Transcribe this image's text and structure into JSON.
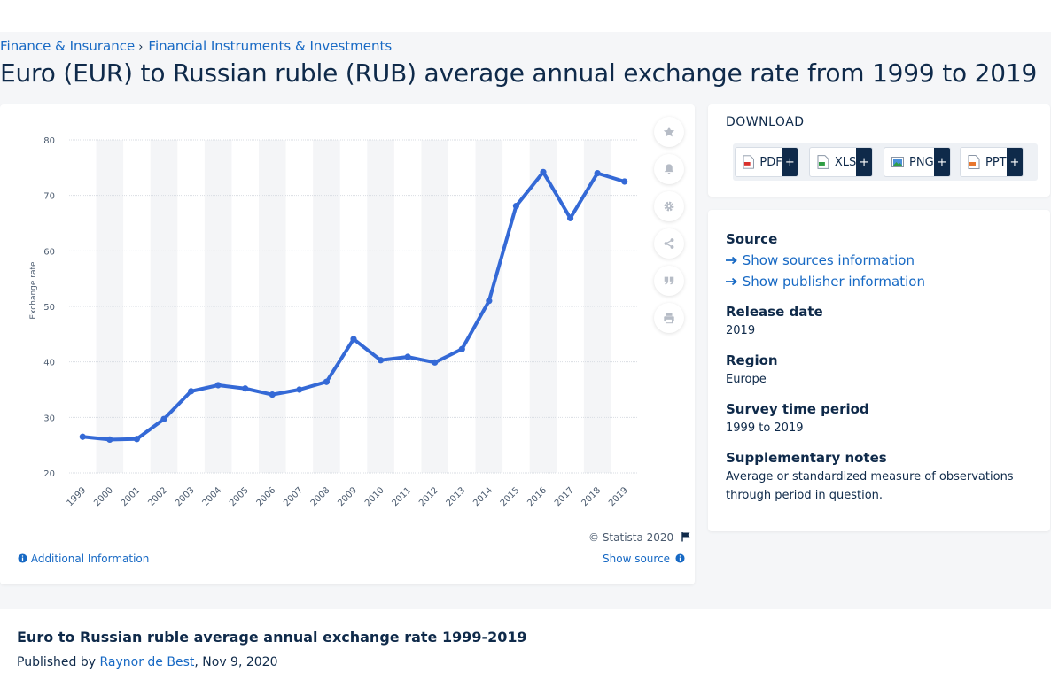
{
  "breadcrumb": {
    "items": [
      "Finance & Insurance",
      "Financial Instruments & Investments"
    ],
    "separator": "›"
  },
  "page": {
    "title": "Euro (EUR) to Russian ruble (RUB) average annual exchange rate from 1999 to 2019"
  },
  "chart_footer": {
    "copyright": "© Statista 2020",
    "additional_info": "Additional Information",
    "show_source": "Show source"
  },
  "download": {
    "title": "DOWNLOAD",
    "buttons": [
      {
        "label": "PDF",
        "plus": "+"
      },
      {
        "label": "XLS",
        "plus": "+"
      },
      {
        "label": "PNG",
        "plus": "+"
      },
      {
        "label": "PPT",
        "plus": "+"
      }
    ]
  },
  "info": {
    "source_label": "Source",
    "show_sources": "Show sources information",
    "show_publisher": "Show publisher information",
    "release_label": "Release date",
    "release_value": "2019",
    "region_label": "Region",
    "region_value": "Europe",
    "survey_label": "Survey time period",
    "survey_value": "1999 to 2019",
    "notes_label": "Supplementary notes",
    "notes_value": "Average or standardized measure of observations through period in question."
  },
  "bottom": {
    "title": "Euro to Russian ruble average annual exchange rate 1999-2019",
    "published_prefix": "Published by ",
    "author": "Raynor de Best",
    "date": ", Nov 9, 2020"
  },
  "colors": {
    "line": "#3469d6",
    "accent": "#1769c4",
    "navy": "#0f2a4a"
  },
  "icons": [
    "star-icon",
    "bell-icon",
    "gear-icon",
    "share-icon",
    "quote-icon",
    "print-icon",
    "flag-icon",
    "info-icon",
    "arrow-right-icon"
  ],
  "chart_data": {
    "type": "line",
    "categories": [
      "1999",
      "2000",
      "2001",
      "2002",
      "2003",
      "2004",
      "2005",
      "2006",
      "2007",
      "2008",
      "2009",
      "2010",
      "2011",
      "2012",
      "2013",
      "2014",
      "2015",
      "2016",
      "2017",
      "2018",
      "2019"
    ],
    "series": [
      {
        "values": [
          26.5,
          26.0,
          26.1,
          29.7,
          34.7,
          35.8,
          35.2,
          34.1,
          35.0,
          36.4,
          44.1,
          40.3,
          40.9,
          39.9,
          42.3,
          51.0,
          68.1,
          74.2,
          65.9,
          74.0,
          72.5
        ]
      }
    ],
    "ylabel": "Exchange rate",
    "xlabel": "",
    "ylim": [
      20,
      80
    ],
    "yticks": [
      20,
      30,
      40,
      50,
      60,
      70,
      80
    ],
    "grid": true
  }
}
